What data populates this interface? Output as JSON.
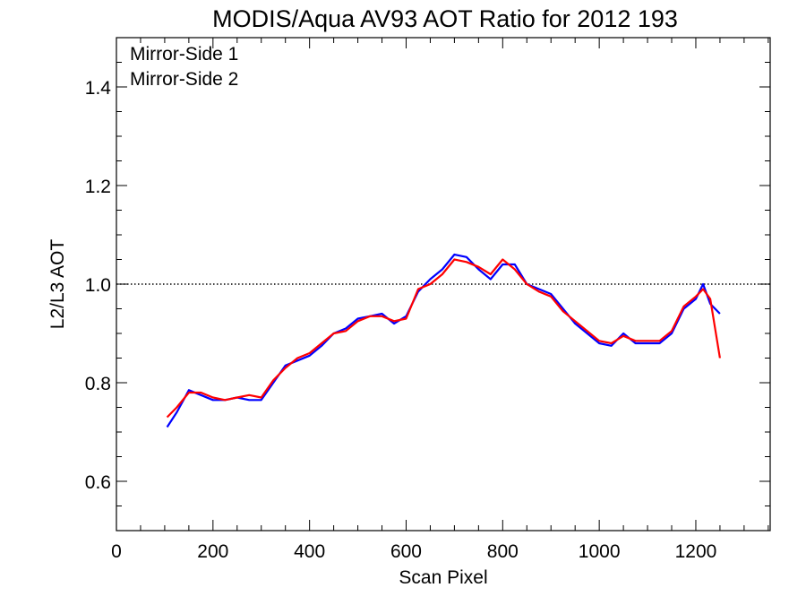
{
  "chart_data": {
    "type": "line",
    "title": "MODIS/Aqua AV93 AOT Ratio for 2012 193",
    "xlabel": "Scan Pixel",
    "ylabel": "L2/L3 AOT",
    "xlim": [
      0,
      1354
    ],
    "ylim": [
      0.5,
      1.5
    ],
    "x_ticks": [
      "0",
      "200",
      "400",
      "600",
      "800",
      "1000",
      "1200"
    ],
    "y_ticks": [
      "0.6",
      "0.8",
      "1.0",
      "1.2",
      "1.4"
    ],
    "reference_line": {
      "y": 1.0,
      "style": "dotted"
    },
    "legend": {
      "placement": "top-left"
    },
    "x": [
      105,
      125,
      150,
      175,
      200,
      225,
      250,
      275,
      300,
      325,
      350,
      375,
      400,
      425,
      450,
      475,
      500,
      525,
      550,
      575,
      600,
      625,
      650,
      675,
      700,
      725,
      750,
      775,
      800,
      825,
      850,
      875,
      900,
      925,
      950,
      975,
      1000,
      1025,
      1050,
      1075,
      1100,
      1125,
      1150,
      1175,
      1200,
      1215,
      1230,
      1250
    ],
    "series": [
      {
        "name": "Mirror-Side 1",
        "color": "#0000ff",
        "values": [
          0.71,
          0.74,
          0.785,
          0.775,
          0.765,
          0.765,
          0.77,
          0.765,
          0.765,
          0.8,
          0.835,
          0.845,
          0.855,
          0.875,
          0.9,
          0.91,
          0.93,
          0.935,
          0.94,
          0.92,
          0.935,
          0.985,
          1.01,
          1.03,
          1.06,
          1.055,
          1.03,
          1.01,
          1.04,
          1.04,
          1.0,
          0.99,
          0.98,
          0.95,
          0.92,
          0.9,
          0.88,
          0.875,
          0.9,
          0.88,
          0.88,
          0.88,
          0.9,
          0.95,
          0.97,
          1.0,
          0.96,
          0.94
        ]
      },
      {
        "name": "Mirror-Side 2",
        "color": "#ff0000",
        "values": [
          0.73,
          0.75,
          0.78,
          0.78,
          0.77,
          0.765,
          0.77,
          0.775,
          0.77,
          0.805,
          0.83,
          0.85,
          0.86,
          0.88,
          0.9,
          0.905,
          0.925,
          0.935,
          0.935,
          0.925,
          0.93,
          0.99,
          1.0,
          1.02,
          1.05,
          1.045,
          1.035,
          1.02,
          1.05,
          1.03,
          1.0,
          0.985,
          0.975,
          0.945,
          0.925,
          0.905,
          0.885,
          0.88,
          0.895,
          0.885,
          0.885,
          0.885,
          0.905,
          0.955,
          0.975,
          0.99,
          0.97,
          0.85
        ]
      }
    ]
  }
}
